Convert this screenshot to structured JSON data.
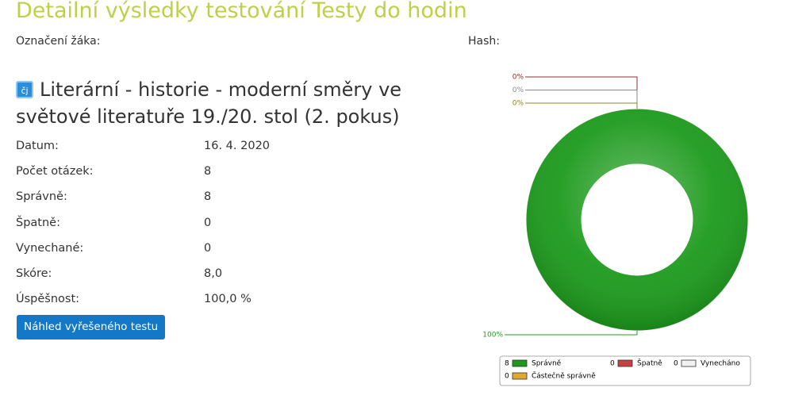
{
  "header": {
    "title": "Detailní výsledky testování Testy do hodin",
    "student_label": "Označení žáka:",
    "hash_label": "Hash:"
  },
  "test": {
    "icon": "čj",
    "title": "Literární - historie - moderní směry ve světové literatuře 19./20. stol (2. pokus)"
  },
  "details": [
    {
      "label": "Datum:",
      "value": "16. 4. 2020"
    },
    {
      "label": "Počet otázek:",
      "value": "8"
    },
    {
      "label": "Správně:",
      "value": "8"
    },
    {
      "label": "Špatně:",
      "value": "0"
    },
    {
      "label": "Vynechané:",
      "value": "0"
    },
    {
      "label": "Skóre:",
      "value": "8,0"
    },
    {
      "label": "Úspěšnost:",
      "value": "100,0 %"
    }
  ],
  "button": "Náhled vyřešeného testu",
  "chart": {
    "type": "donut",
    "series": [
      {
        "name": "Správně",
        "color": "#1c9a1c",
        "line_color": "#2a9a2a",
        "count": 8,
        "value": 100,
        "value_label": "100%"
      },
      {
        "name": "Špatně",
        "color": "#c84040",
        "line_color": "#8a3030",
        "count": 0,
        "value": 0,
        "value_label": "0%"
      },
      {
        "name": "Vynecháno",
        "color": "#f2f2f2",
        "line_color": "#888888",
        "count": 0,
        "value": 0,
        "value_label": "0%"
      },
      {
        "name": "Částečně správně",
        "color": "#e0a830",
        "line_color": "#8a8a20",
        "count": 0,
        "value": 0,
        "value_label": "0%"
      }
    ]
  }
}
